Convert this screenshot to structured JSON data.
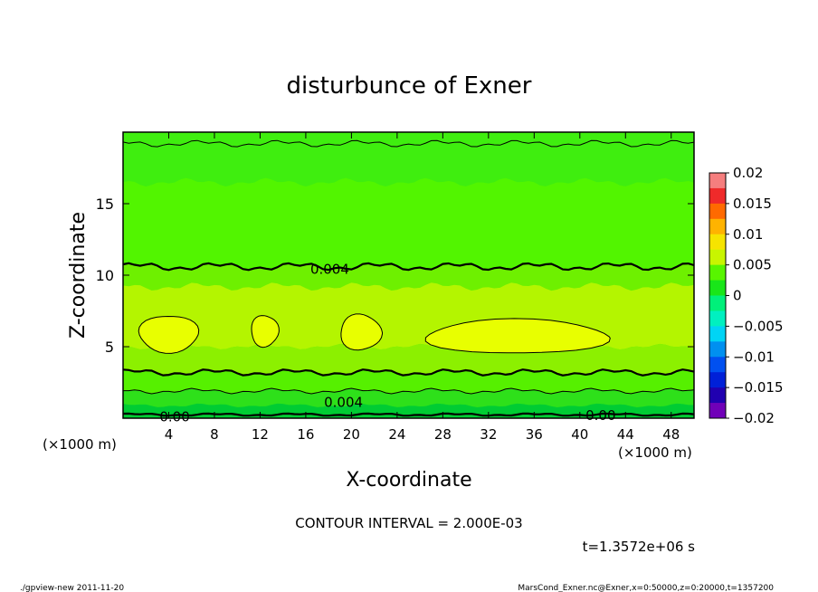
{
  "chart_data": {
    "type": "heatmap",
    "title": "disturbunce of Exner",
    "xlabel": "X-coordinate",
    "ylabel": "Z-coordinate",
    "x_unit": "(×1000 m)",
    "y_unit": "(×1000 m)",
    "xlim": [
      0,
      50
    ],
    "ylim": [
      0,
      20
    ],
    "x_ticks": [
      "4",
      "8",
      "12",
      "16",
      "20",
      "24",
      "28",
      "32",
      "36",
      "40",
      "44",
      "48"
    ],
    "y_ticks": [
      "5",
      "10",
      "15"
    ],
    "colorbar": {
      "range": [
        -0.02,
        0.02
      ],
      "labels": [
        "0.02",
        "0.015",
        "0.01",
        "0.005",
        "0",
        "−0.005",
        "−0.01",
        "−0.015",
        "−0.02"
      ],
      "colors": [
        "#f57e7e",
        "#ef2a2a",
        "#ff6a00",
        "#ffb300",
        "#f6e400",
        "#c8f500",
        "#58f500",
        "#19e619",
        "#00f07a",
        "#00f0c0",
        "#00d4f5",
        "#0090f0",
        "#0050f0",
        "#0020d8",
        "#2000b0",
        "#7000b8"
      ]
    },
    "field_colors": {
      "z_0_1": "#00cc33",
      "z_1_2": "#2ee01a",
      "z_2_3": "#56f000",
      "z_3_5": "#8cf000",
      "z_5_7": "#b4f500",
      "z_5_7_blobs": "#e8ff00",
      "z_upper": "#52f500",
      "z_top": "#3fee0f"
    },
    "contour_levels": [
      0.0,
      0.002,
      0.004,
      0.006
    ],
    "contour_labels": [
      {
        "text": "0.004",
        "x": 16.4,
        "z": 10.4
      },
      {
        "text": "0.004",
        "x": 17.6,
        "z": 1.1
      },
      {
        "text": "0.00",
        "x": 3.2,
        "z": 0.1
      },
      {
        "text": "0.00",
        "x": 40.5,
        "z": 0.2
      }
    ],
    "contour_interval_text": "CONTOUR INTERVAL = 2.000E-03",
    "time_text": "t=1.3572e+06 s"
  },
  "footer": {
    "left": "./gpview-new   2011-11-20",
    "right": "MarsCond_Exner.nc@Exner,x=0:50000,z=0:20000,t=1357200"
  }
}
